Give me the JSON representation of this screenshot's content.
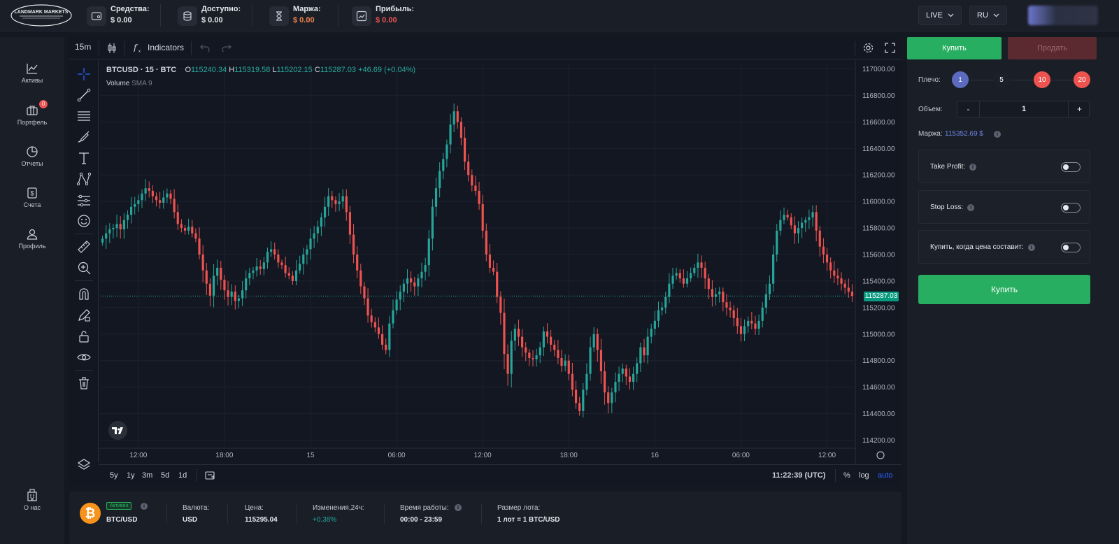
{
  "header": {
    "logo_text": "LANDMARK MARKETS",
    "stats": [
      {
        "label": "Средства:",
        "value": "$ 0.00",
        "icon": "wallet-icon"
      },
      {
        "label": "Доступно:",
        "value": "$ 0.00",
        "icon": "database-icon"
      },
      {
        "label": "Маржа:",
        "value": "$ 0.00",
        "icon": "hourglass-icon"
      },
      {
        "label": "Прибыль:",
        "value": "$ 0.00",
        "icon": "profit-chart-icon"
      }
    ],
    "mode": "LIVE",
    "language": "RU"
  },
  "sidebar": {
    "items": [
      {
        "label": "Активы",
        "icon": "chart-line-icon"
      },
      {
        "label": "Портфель",
        "icon": "briefcase-icon",
        "badge": "0"
      },
      {
        "label": "Отчеты",
        "icon": "pie-chart-icon"
      },
      {
        "label": "Счета",
        "icon": "dollar-card-icon"
      },
      {
        "label": "Профиль",
        "icon": "user-icon"
      }
    ],
    "about": "О нас"
  },
  "chart_toolbar": {
    "interval": "15m",
    "indicators": "Indicators"
  },
  "legend": {
    "symbol": "BTCUSD · 15 · BTC",
    "o_label": "O",
    "o": "115240.34",
    "h_label": "H",
    "h": "115319.58",
    "l_label": "L",
    "l": "115202.15",
    "c_label": "C",
    "c": "115287.03",
    "change": "+46.69 (+0.04%)",
    "volume_label": "Volume",
    "volume_ma": "SMA 9"
  },
  "current_price_label": "115287.03",
  "bottom_toolbar": {
    "ranges": [
      "5y",
      "1y",
      "3m",
      "5d",
      "1d"
    ],
    "time": "11:22:39 (UTC)",
    "percent": "%",
    "log": "log",
    "auto": "auto"
  },
  "chart_data": {
    "type": "candlestick",
    "title": "BTCUSD · 15 · BTC",
    "y_ticks": [
      117000,
      116800,
      116600,
      116400,
      116200,
      116000,
      115800,
      115600,
      115400,
      115200,
      115000,
      114800,
      114600,
      114400,
      114200
    ],
    "y_tick_labels": [
      "117000.00",
      "116800.00",
      "116600.00",
      "116400.00",
      "116200.00",
      "116000.00",
      "115800.00",
      "115600.00",
      "115400.00",
      "115200.00",
      "115000.00",
      "114800.00",
      "114600.00",
      "114400.00",
      "114200.00"
    ],
    "ylim": [
      114150,
      117050
    ],
    "x_tick_labels": [
      "12:00",
      "18:00",
      "15",
      "06:00",
      "12:00",
      "18:00",
      "16",
      "06:00",
      "12:00"
    ],
    "x_tick_bars": [
      10,
      34,
      58,
      82,
      106,
      130,
      154,
      178,
      202
    ],
    "n_bars": 210,
    "last_price": 115287.03,
    "closes": [
      115720,
      115760,
      115790,
      115800,
      115830,
      115790,
      115860,
      115900,
      115960,
      115980,
      116010,
      116060,
      116100,
      116080,
      116040,
      116010,
      115990,
      116030,
      116060,
      116020,
      115920,
      115830,
      115800,
      115780,
      115810,
      115760,
      115720,
      115600,
      115480,
      115380,
      115290,
      115440,
      115500,
      115410,
      115330,
      115280,
      115320,
      115250,
      115270,
      115330,
      115420,
      115460,
      115480,
      115510,
      115490,
      115540,
      115620,
      115640,
      115600,
      115540,
      115520,
      115460,
      115440,
      115400,
      115480,
      115530,
      115600,
      115640,
      115720,
      115760,
      115810,
      115880,
      115960,
      116040,
      116010,
      115980,
      116000,
      116040,
      115920,
      115750,
      115600,
      115480,
      115360,
      115270,
      115140,
      115090,
      115050,
      115000,
      114920,
      114880,
      115080,
      115180,
      115260,
      115320,
      115380,
      115420,
      115390,
      115360,
      115420,
      115470,
      115520,
      115720,
      115960,
      116100,
      116230,
      116320,
      116430,
      116580,
      116680,
      116600,
      116480,
      116300,
      116200,
      116120,
      116080,
      115980,
      115780,
      115600,
      115500,
      115470,
      115280,
      115160,
      114850,
      114700,
      114950,
      115040,
      114980,
      114900,
      114860,
      114820,
      114810,
      114840,
      114900,
      115020,
      114980,
      114920,
      114880,
      114820,
      114760,
      114800,
      114700,
      114580,
      114480,
      114420,
      114580,
      114700,
      114900,
      115000,
      114880,
      114720,
      114560,
      114480,
      114560,
      114640,
      114700,
      114740,
      114680,
      114640,
      114700,
      114780,
      114900,
      114840,
      114980,
      115040,
      115100,
      115180,
      115200,
      115280,
      115380,
      115440,
      115460,
      115420,
      115380,
      115420,
      115460,
      115500,
      115540,
      115500,
      115420,
      115340,
      115280,
      115300,
      115320,
      115240,
      115200,
      115180,
      115120,
      115060,
      115000,
      115060,
      115100,
      115080,
      115040,
      115100,
      115200,
      115300,
      115380,
      115600,
      115780,
      115860,
      115900,
      115880,
      115820,
      115760,
      115800,
      115840,
      115860,
      115880,
      115920,
      115780,
      115660,
      115600,
      115540,
      115480,
      115440,
      115420,
      115380,
      115350,
      115320,
      115287
    ]
  },
  "order_panel": {
    "buy_tab": "Купить",
    "sell_tab": "Продать",
    "leverage_label": "Плечо:",
    "leverage_options": [
      "1",
      "5",
      "10",
      "20"
    ],
    "volume_label": "Объем:",
    "minus": "-",
    "plus": "+",
    "volume_value": "1",
    "margin_label": "Маржа:",
    "margin_value": "115352.69 $",
    "take_profit": "Take Profit:",
    "stop_loss": "Stop Loss:",
    "buy_when": "Купить, когда цена составит:",
    "buy_button": "Купить"
  },
  "info_bar": {
    "status": "Активен",
    "pair": "BTC/USD",
    "currency_label": "Валюта:",
    "currency": "USD",
    "price_label": "Цена:",
    "price": "115295.04",
    "change_label": "Изменения,24ч:",
    "change": "+0.38%",
    "hours_label": "Время работы:",
    "hours": "00:00 - 23:59",
    "lot_label": "Размер лота:",
    "lot": "1 лот = 1 BTC/USD"
  },
  "colors": {
    "up": "#26a69a",
    "down": "#ef5350",
    "buy": "#27ae60",
    "accent_blue": "#5c6bc0"
  }
}
